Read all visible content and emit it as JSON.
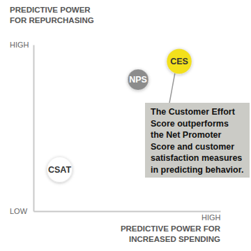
{
  "chart_data": {
    "type": "scatter",
    "ylabel": [
      "PREDICTIVE POWER",
      "FOR REPURCHASING"
    ],
    "xlabel": [
      "PREDICTIVE POWER FOR",
      "INCREASED SPENDING"
    ],
    "labels": [
      "CSAT",
      "NPS",
      "CES"
    ],
    "x": [
      1.4,
      5.6,
      7.8
    ],
    "values": [
      2.5,
      7.9,
      9.0
    ],
    "colors": [
      "#ffffff",
      "#8c8c8c",
      "#f3e01a"
    ],
    "xlim": [
      0,
      10
    ],
    "ylim": [
      0,
      10
    ],
    "xticks": [
      {
        "value": 10,
        "label": "HIGH"
      }
    ],
    "yticks": [
      {
        "value": 0,
        "label": "LOW"
      },
      {
        "value": 10,
        "label": "HIGH"
      }
    ],
    "grid": false,
    "annotation": [
      "The Customer Effort",
      "Score outperforms",
      "the Net Promoter",
      "Score and customer",
      "satisfaction measures",
      "in predicting behavior."
    ]
  }
}
